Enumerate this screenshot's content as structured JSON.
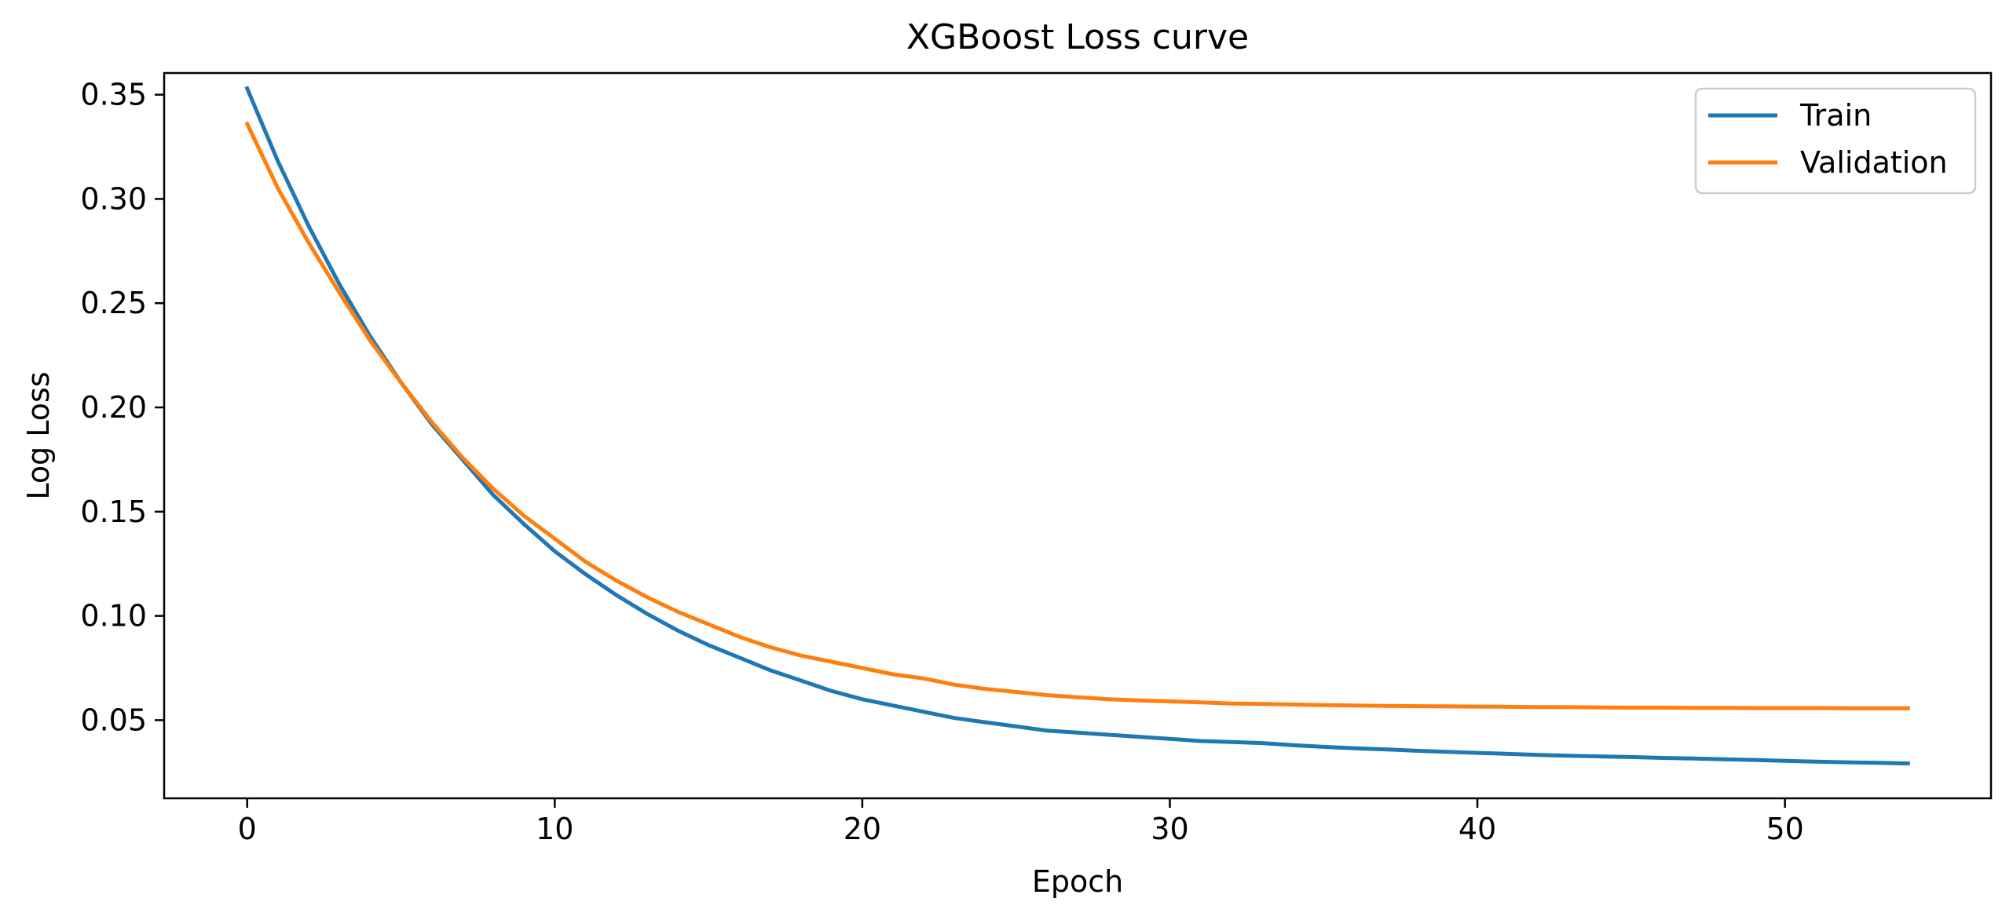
{
  "chart_data": {
    "type": "line",
    "title": "XGBoost Loss curve",
    "xlabel": "Epoch",
    "ylabel": "Log Loss",
    "xlim": [
      -2.7,
      56.7
    ],
    "ylim": [
      0.0125,
      0.3604
    ],
    "xticks": [
      0,
      10,
      20,
      30,
      40,
      50
    ],
    "xtick_labels": [
      "0",
      "10",
      "20",
      "30",
      "40",
      "50"
    ],
    "yticks": [
      0.05,
      0.1,
      0.15,
      0.2,
      0.25,
      0.3,
      0.35
    ],
    "ytick_labels": [
      "0.05",
      "0.10",
      "0.15",
      "0.20",
      "0.25",
      "0.30",
      "0.35"
    ],
    "grid": false,
    "legend_position": "top-right",
    "x": [
      0,
      1,
      2,
      3,
      4,
      5,
      6,
      7,
      8,
      9,
      10,
      11,
      12,
      13,
      14,
      15,
      16,
      17,
      18,
      19,
      20,
      21,
      22,
      23,
      24,
      25,
      26,
      27,
      28,
      29,
      30,
      31,
      32,
      33,
      34,
      35,
      36,
      37,
      38,
      39,
      40,
      41,
      42,
      43,
      44,
      45,
      46,
      47,
      48,
      49,
      50,
      51,
      52,
      53,
      54
    ],
    "series": [
      {
        "name": "Train",
        "color": "#1f77b4",
        "values": [
          0.353,
          0.318,
          0.287,
          0.259,
          0.234,
          0.212,
          0.192,
          0.175,
          0.158,
          0.144,
          0.131,
          0.12,
          0.11,
          0.101,
          0.093,
          0.086,
          0.08,
          0.074,
          0.069,
          0.064,
          0.06,
          0.057,
          0.054,
          0.051,
          0.049,
          0.047,
          0.045,
          0.044,
          0.043,
          0.042,
          0.041,
          0.04,
          0.0395,
          0.039,
          0.038,
          0.0372,
          0.0365,
          0.036,
          0.0353,
          0.0348,
          0.0343,
          0.0338,
          0.0333,
          0.0329,
          0.0326,
          0.0323,
          0.0319,
          0.0316,
          0.0312,
          0.0309,
          0.0305,
          0.0301,
          0.0298,
          0.0295,
          0.0292
        ]
      },
      {
        "name": "Validation",
        "color": "#ff7f0e",
        "values": [
          0.336,
          0.305,
          0.279,
          0.255,
          0.232,
          0.212,
          0.193,
          0.176,
          0.161,
          0.148,
          0.137,
          0.126,
          0.117,
          0.109,
          0.102,
          0.096,
          0.09,
          0.085,
          0.081,
          0.078,
          0.075,
          0.072,
          0.07,
          0.067,
          0.065,
          0.0635,
          0.062,
          0.061,
          0.06,
          0.0595,
          0.059,
          0.0585,
          0.058,
          0.0578,
          0.0575,
          0.0572,
          0.057,
          0.0568,
          0.0567,
          0.0566,
          0.0565,
          0.0564,
          0.0563,
          0.0562,
          0.0561,
          0.056,
          0.056,
          0.0559,
          0.0559,
          0.0558,
          0.0558,
          0.0558,
          0.0557,
          0.0557,
          0.0557
        ]
      }
    ]
  }
}
